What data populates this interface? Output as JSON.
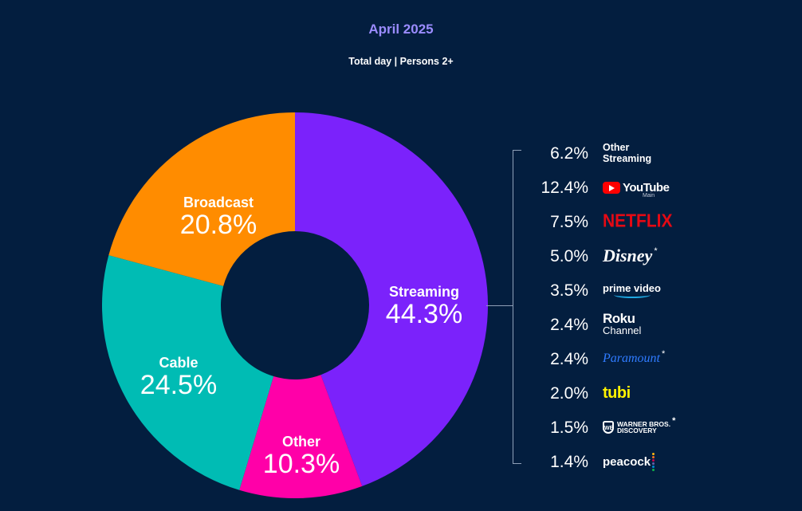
{
  "header": {
    "title": "April 2025",
    "subtitle": "Total day | Persons 2+"
  },
  "chart_data": {
    "type": "pie",
    "donut": true,
    "title": "April 2025",
    "subtitle": "Total day | Persons 2+",
    "slices": [
      {
        "name": "Streaming",
        "value": 44.3,
        "label": "44.3%",
        "color": "#7b22fb"
      },
      {
        "name": "Other",
        "value": 10.3,
        "label": "10.3%",
        "color": "#ff00a8"
      },
      {
        "name": "Cable",
        "value": 24.5,
        "label": "24.5%",
        "color": "#00bcb4"
      },
      {
        "name": "Broadcast",
        "value": 20.8,
        "label": "20.8%",
        "color": "#ff8c00"
      }
    ],
    "breakdown": {
      "parent": "Streaming",
      "items": [
        {
          "name": "Other Streaming",
          "value": 6.2,
          "label": "6.2%",
          "logo": "other-streaming"
        },
        {
          "name": "YouTube Main",
          "value": 12.4,
          "label": "12.4%",
          "logo": "youtube-logo"
        },
        {
          "name": "NETFLIX",
          "value": 7.5,
          "label": "7.5%",
          "logo": "netflix-logo"
        },
        {
          "name": "Disney",
          "value": 5.0,
          "label": "5.0%",
          "logo": "disney-logo",
          "asterisk": true
        },
        {
          "name": "prime video",
          "value": 3.5,
          "label": "3.5%",
          "logo": "prime-video-logo"
        },
        {
          "name": "Roku Channel",
          "value": 2.4,
          "label": "2.4%",
          "logo": "roku-channel-logo"
        },
        {
          "name": "Paramount",
          "value": 2.4,
          "label": "2.4%",
          "logo": "paramount-logo",
          "asterisk": true
        },
        {
          "name": "tubi",
          "value": 2.0,
          "label": "2.0%",
          "logo": "tubi-logo"
        },
        {
          "name": "WARNER BROS. DISCOVERY",
          "value": 1.5,
          "label": "1.5%",
          "logo": "wbd-logo",
          "asterisk": true
        },
        {
          "name": "peacock",
          "value": 1.4,
          "label": "1.4%",
          "logo": "peacock-logo"
        }
      ]
    }
  },
  "logos": {
    "other_line1": "Other",
    "other_line2": "Streaming",
    "youtube_text": "YouTube",
    "youtube_sub": "Main",
    "netflix_text": "NETFLIX",
    "disney_text": "Disney",
    "prime_text": "prime video",
    "roku_line1": "Roku",
    "roku_line2": "Channel",
    "paramount_text": "Paramount",
    "tubi_text": "tubi",
    "wbd_shield": "WB",
    "wbd_line1": "WARNER BROS.",
    "wbd_line2": "DISCOVERY",
    "peacock_text": "peacock",
    "asterisk": "*"
  },
  "colors": {
    "background": "#031e3f",
    "title": "#9b8cff",
    "bracket": "#8fa0b8",
    "peacock_dots": [
      "#fcb711",
      "#f37021",
      "#cc004c",
      "#6460aa",
      "#0089d0",
      "#0db14b"
    ]
  }
}
